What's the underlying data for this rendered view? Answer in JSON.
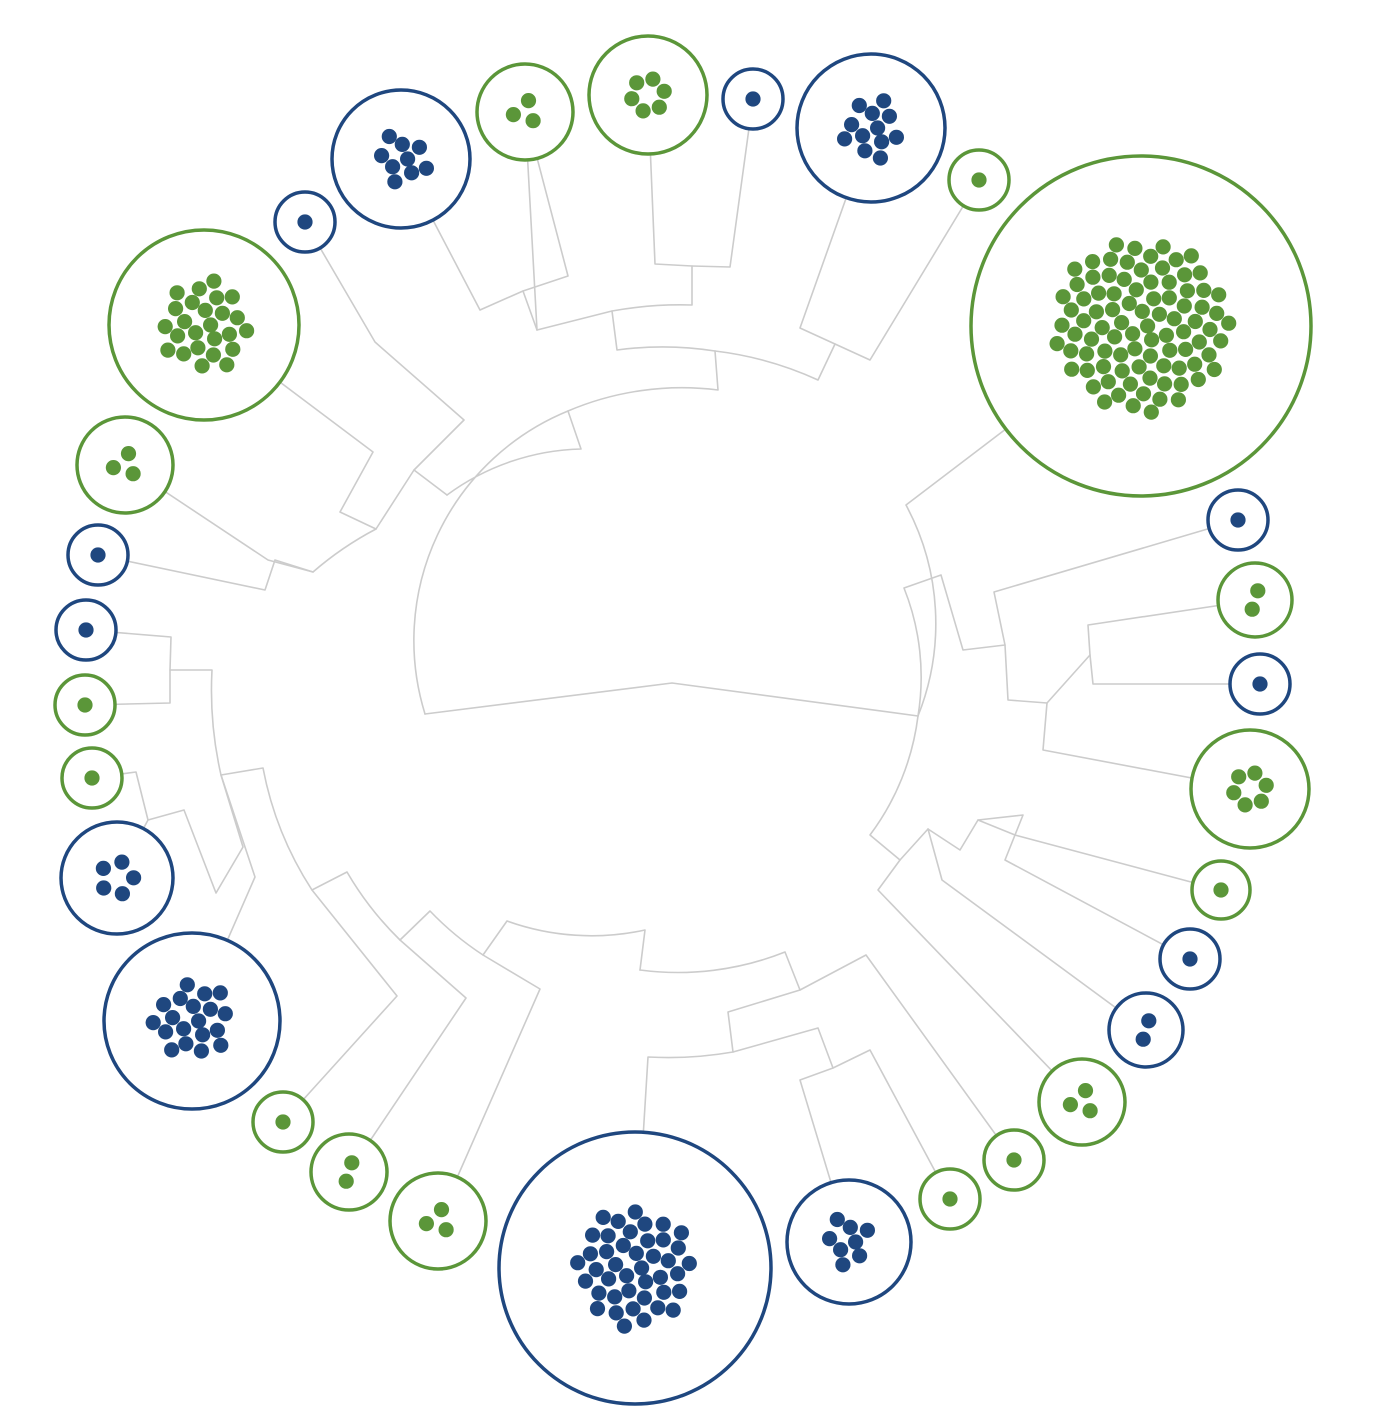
{
  "colors": {
    "type_a": "#1f477f",
    "type_b": "#5b9639",
    "edge": "#cccccc",
    "background": "#ffffff"
  },
  "clones": [
    {
      "id": "c01",
      "type": "type_b",
      "count": 1
    },
    {
      "id": "c02",
      "type": "type_b",
      "count": 90
    },
    {
      "id": "c03",
      "type": "type_a",
      "count": 1
    },
    {
      "id": "c04",
      "type": "type_b",
      "count": 2
    },
    {
      "id": "c05",
      "type": "type_a",
      "count": 1
    },
    {
      "id": "c06",
      "type": "type_b",
      "count": 6
    },
    {
      "id": "c07",
      "type": "type_b",
      "count": 1
    },
    {
      "id": "c08",
      "type": "type_a",
      "count": 1
    },
    {
      "id": "c09",
      "type": "type_a",
      "count": 2
    },
    {
      "id": "c10",
      "type": "type_b",
      "count": 3
    },
    {
      "id": "c11",
      "type": "type_b",
      "count": 1
    },
    {
      "id": "c12",
      "type": "type_b",
      "count": 1
    },
    {
      "id": "c13",
      "type": "type_a",
      "count": 8
    },
    {
      "id": "c14",
      "type": "type_a",
      "count": 42
    },
    {
      "id": "c15",
      "type": "type_b",
      "count": 3
    },
    {
      "id": "c16",
      "type": "type_b",
      "count": 2
    },
    {
      "id": "c17",
      "type": "type_b",
      "count": 1
    },
    {
      "id": "c18",
      "type": "type_a",
      "count": 19
    },
    {
      "id": "c19",
      "type": "type_a",
      "count": 5
    },
    {
      "id": "c20",
      "type": "type_b",
      "count": 1
    },
    {
      "id": "c21",
      "type": "type_b",
      "count": 1
    },
    {
      "id": "c22",
      "type": "type_a",
      "count": 1
    },
    {
      "id": "c23",
      "type": "type_a",
      "count": 1
    },
    {
      "id": "c24",
      "type": "type_b",
      "count": 3
    },
    {
      "id": "c25",
      "type": "type_b",
      "count": 25
    },
    {
      "id": "c26",
      "type": "type_a",
      "count": 1
    },
    {
      "id": "c27",
      "type": "type_a",
      "count": 9
    },
    {
      "id": "c28",
      "type": "type_b",
      "count": 3
    },
    {
      "id": "c29",
      "type": "type_b",
      "count": 6
    },
    {
      "id": "c30",
      "type": "type_a",
      "count": 1
    },
    {
      "id": "c31",
      "type": "type_a",
      "count": 12
    }
  ]
}
